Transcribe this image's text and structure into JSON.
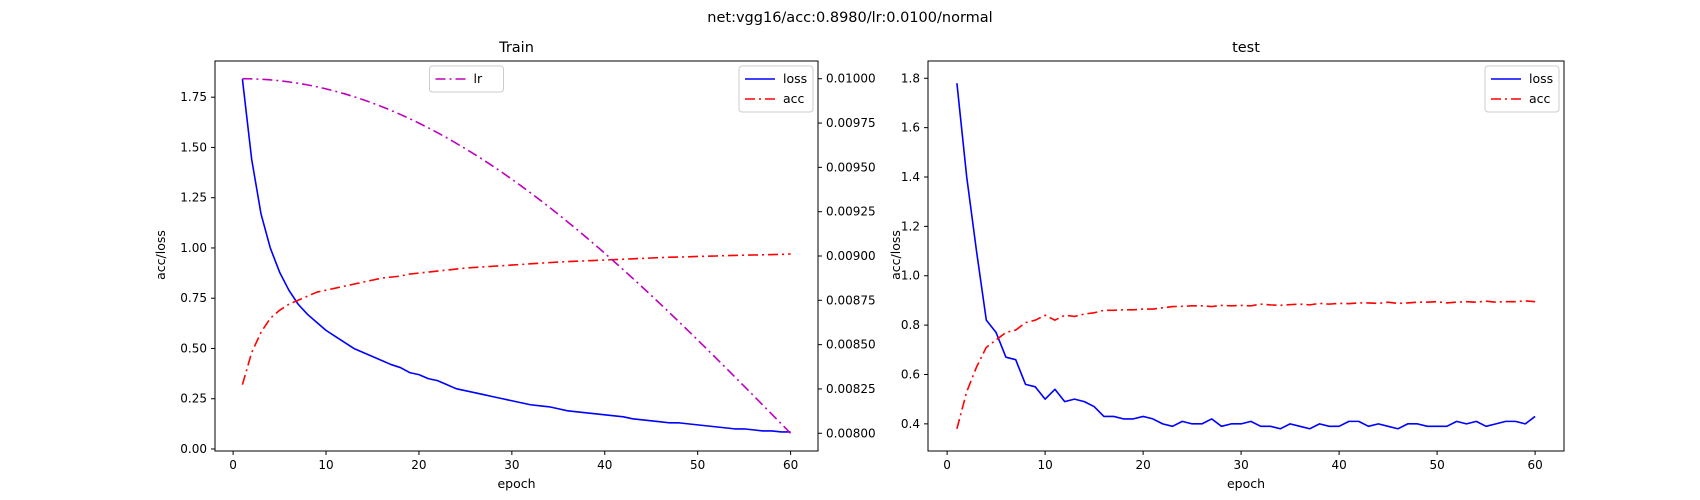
{
  "figure": {
    "suptitle": "net:vgg16/acc:0.8980/lr:0.0100/normal"
  },
  "chart_data": [
    {
      "type": "line",
      "title": "Train",
      "xlabel": "epoch",
      "ylabel": "acc/loss",
      "xlim": [
        -1.95,
        62.95
      ],
      "ylim": [
        -0.01,
        1.93
      ],
      "xticks": [
        0,
        10,
        20,
        30,
        40,
        50,
        60
      ],
      "yticks": [
        0,
        0.25,
        0.5,
        0.75,
        1.0,
        1.25,
        1.5,
        1.75
      ],
      "ytick_labels": [
        "0.00",
        "0.25",
        "0.50",
        "0.75",
        "1.00",
        "1.25",
        "1.50",
        "1.75"
      ],
      "y2lim": [
        0.0079,
        0.0101
      ],
      "y2ticks": [
        0.008,
        0.00825,
        0.0085,
        0.00875,
        0.009,
        0.00925,
        0.0095,
        0.00975,
        0.01
      ],
      "y2tick_labels": [
        "0.00800",
        "0.00825",
        "0.00850",
        "0.00875",
        "0.00900",
        "0.00925",
        "0.00950",
        "0.00975",
        "0.01000"
      ],
      "legend": {
        "position": "upper-right",
        "entries": [
          "loss",
          "acc"
        ]
      },
      "legend2": {
        "position": "upper-center",
        "entries": [
          "lr"
        ]
      },
      "series": [
        {
          "name": "loss",
          "axis": "left",
          "color": "#0000ff",
          "style": "solid",
          "x": [
            1,
            2,
            3,
            4,
            5,
            6,
            7,
            8,
            9,
            10,
            11,
            12,
            13,
            14,
            15,
            16,
            17,
            18,
            19,
            20,
            21,
            22,
            23,
            24,
            25,
            26,
            27,
            28,
            29,
            30,
            31,
            32,
            33,
            34,
            35,
            36,
            37,
            38,
            39,
            40,
            41,
            42,
            43,
            44,
            45,
            46,
            47,
            48,
            49,
            50,
            51,
            52,
            53,
            54,
            55,
            56,
            57,
            58,
            59,
            60
          ],
          "values": [
            1.84,
            1.44,
            1.17,
            1.0,
            0.88,
            0.79,
            0.72,
            0.67,
            0.63,
            0.59,
            0.56,
            0.53,
            0.5,
            0.48,
            0.46,
            0.44,
            0.42,
            0.405,
            0.38,
            0.37,
            0.35,
            0.34,
            0.32,
            0.3,
            0.29,
            0.28,
            0.27,
            0.26,
            0.25,
            0.24,
            0.23,
            0.22,
            0.215,
            0.21,
            0.2,
            0.19,
            0.185,
            0.18,
            0.175,
            0.17,
            0.165,
            0.16,
            0.15,
            0.145,
            0.14,
            0.135,
            0.13,
            0.13,
            0.125,
            0.12,
            0.115,
            0.11,
            0.105,
            0.1,
            0.1,
            0.095,
            0.09,
            0.09,
            0.085,
            0.085
          ]
        },
        {
          "name": "acc",
          "axis": "left",
          "color": "#ff0000",
          "style": "dashdot",
          "x": [
            1,
            2,
            3,
            4,
            5,
            6,
            7,
            8,
            9,
            10,
            11,
            12,
            13,
            14,
            15,
            16,
            17,
            18,
            19,
            20,
            21,
            22,
            23,
            24,
            25,
            26,
            27,
            28,
            29,
            30,
            31,
            32,
            33,
            34,
            35,
            36,
            37,
            38,
            39,
            40,
            41,
            42,
            43,
            44,
            45,
            46,
            47,
            48,
            49,
            50,
            51,
            52,
            53,
            54,
            55,
            56,
            57,
            58,
            59,
            60
          ],
          "values": [
            0.32,
            0.48,
            0.58,
            0.65,
            0.69,
            0.72,
            0.74,
            0.76,
            0.78,
            0.79,
            0.8,
            0.81,
            0.82,
            0.83,
            0.84,
            0.85,
            0.855,
            0.86,
            0.87,
            0.875,
            0.88,
            0.885,
            0.89,
            0.895,
            0.9,
            0.903,
            0.906,
            0.909,
            0.912,
            0.915,
            0.918,
            0.921,
            0.924,
            0.927,
            0.93,
            0.932,
            0.934,
            0.936,
            0.938,
            0.94,
            0.942,
            0.944,
            0.946,
            0.948,
            0.95,
            0.952,
            0.954,
            0.955,
            0.956,
            0.958,
            0.959,
            0.96,
            0.962,
            0.963,
            0.964,
            0.965,
            0.966,
            0.967,
            0.968,
            0.97
          ]
        },
        {
          "name": "lr",
          "axis": "right",
          "color": "#bf00bf",
          "style": "dashdot",
          "curve": "cosine",
          "x_start": 1,
          "x_end": 60,
          "y_start": 0.01,
          "y_end": 0.008,
          "points": 60
        }
      ]
    },
    {
      "type": "line",
      "title": "test",
      "xlabel": "epoch",
      "ylabel": "acc/loss",
      "xlim": [
        -1.95,
        62.95
      ],
      "ylim": [
        0.29,
        1.87
      ],
      "xticks": [
        0,
        10,
        20,
        30,
        40,
        50,
        60
      ],
      "yticks": [
        0.4,
        0.6,
        0.8,
        1.0,
        1.2,
        1.4,
        1.6,
        1.8
      ],
      "ytick_labels": [
        "0.4",
        "0.6",
        "0.8",
        "1.0",
        "1.2",
        "1.4",
        "1.6",
        "1.8"
      ],
      "legend": {
        "position": "upper-right",
        "entries": [
          "loss",
          "acc"
        ]
      },
      "series": [
        {
          "name": "loss",
          "axis": "left",
          "color": "#0000ff",
          "style": "solid",
          "x": [
            1,
            2,
            3,
            4,
            5,
            6,
            7,
            8,
            9,
            10,
            11,
            12,
            13,
            14,
            15,
            16,
            17,
            18,
            19,
            20,
            21,
            22,
            23,
            24,
            25,
            26,
            27,
            28,
            29,
            30,
            31,
            32,
            33,
            34,
            35,
            36,
            37,
            38,
            39,
            40,
            41,
            42,
            43,
            44,
            45,
            46,
            47,
            48,
            49,
            50,
            51,
            52,
            53,
            54,
            55,
            56,
            57,
            58,
            59,
            60
          ],
          "values": [
            1.78,
            1.4,
            1.1,
            0.82,
            0.77,
            0.67,
            0.66,
            0.56,
            0.55,
            0.5,
            0.54,
            0.49,
            0.5,
            0.49,
            0.47,
            0.43,
            0.43,
            0.42,
            0.42,
            0.43,
            0.42,
            0.4,
            0.39,
            0.41,
            0.4,
            0.4,
            0.42,
            0.39,
            0.4,
            0.4,
            0.41,
            0.39,
            0.39,
            0.38,
            0.4,
            0.39,
            0.38,
            0.4,
            0.39,
            0.39,
            0.41,
            0.41,
            0.39,
            0.4,
            0.39,
            0.38,
            0.4,
            0.4,
            0.39,
            0.39,
            0.39,
            0.41,
            0.4,
            0.41,
            0.39,
            0.4,
            0.41,
            0.41,
            0.4,
            0.43
          ]
        },
        {
          "name": "acc",
          "axis": "left",
          "color": "#ff0000",
          "style": "dashdot",
          "x": [
            1,
            2,
            3,
            4,
            5,
            6,
            7,
            8,
            9,
            10,
            11,
            12,
            13,
            14,
            15,
            16,
            17,
            18,
            19,
            20,
            21,
            22,
            23,
            24,
            25,
            26,
            27,
            28,
            29,
            30,
            31,
            32,
            33,
            34,
            35,
            36,
            37,
            38,
            39,
            40,
            41,
            42,
            43,
            44,
            45,
            46,
            47,
            48,
            49,
            50,
            51,
            52,
            53,
            54,
            55,
            56,
            57,
            58,
            59,
            60
          ],
          "values": [
            0.38,
            0.53,
            0.63,
            0.71,
            0.74,
            0.77,
            0.78,
            0.81,
            0.82,
            0.84,
            0.82,
            0.84,
            0.835,
            0.845,
            0.85,
            0.86,
            0.86,
            0.862,
            0.862,
            0.865,
            0.865,
            0.87,
            0.875,
            0.876,
            0.878,
            0.878,
            0.875,
            0.88,
            0.878,
            0.88,
            0.878,
            0.885,
            0.882,
            0.88,
            0.883,
            0.885,
            0.882,
            0.888,
            0.885,
            0.888,
            0.887,
            0.89,
            0.89,
            0.888,
            0.893,
            0.888,
            0.89,
            0.893,
            0.893,
            0.895,
            0.89,
            0.893,
            0.895,
            0.893,
            0.897,
            0.893,
            0.895,
            0.895,
            0.898,
            0.895
          ]
        }
      ]
    }
  ]
}
